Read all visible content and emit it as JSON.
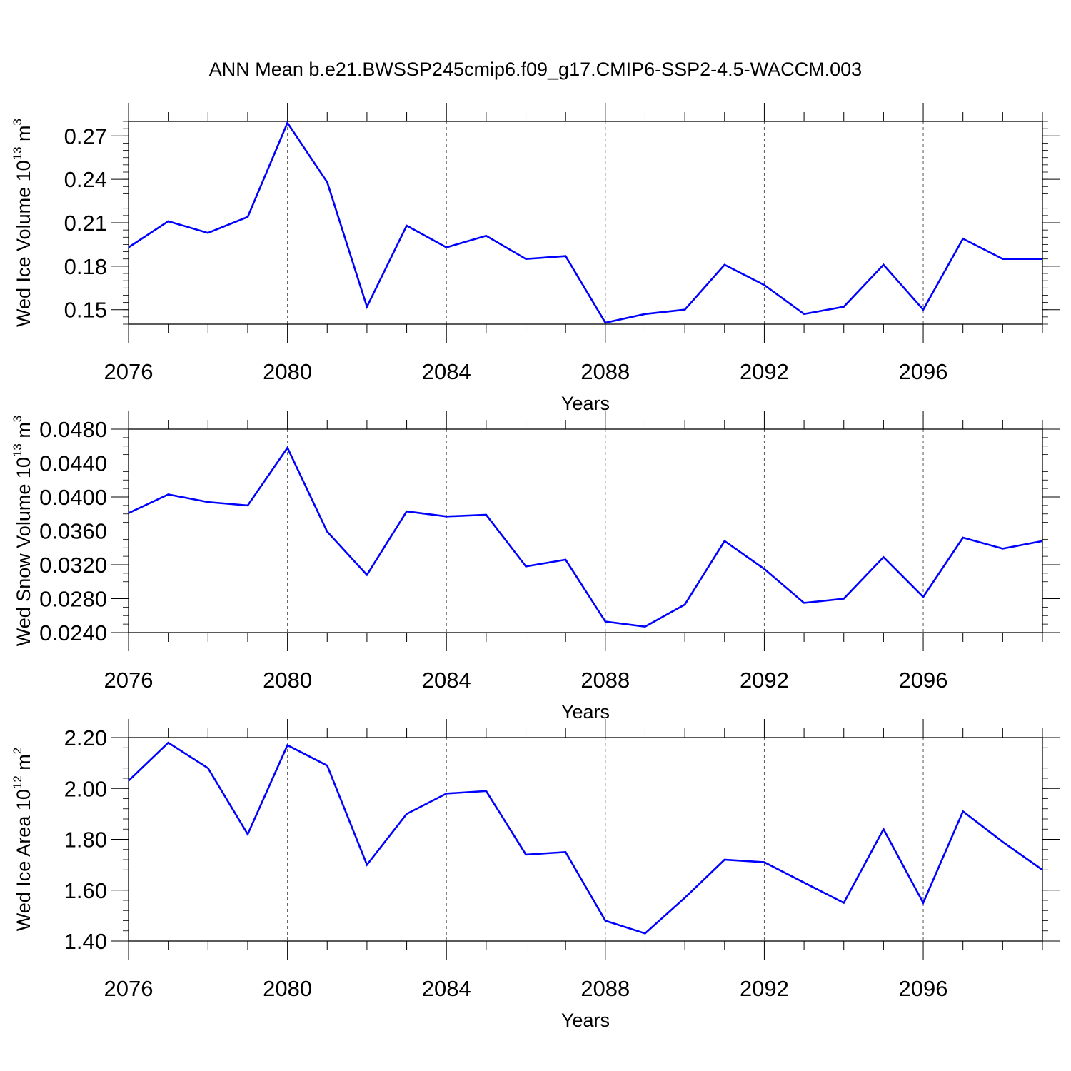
{
  "title": "ANN Mean b.e21.BWSSP245cmip6.f09_g17.CMIP6-SSP2-4.5-WACCM.003",
  "line_color": "#0000ff",
  "chart_data": [
    {
      "type": "line",
      "xlabel": "Years",
      "ylabel": "Wed Ice Volume 10",
      "ylabel_exp": "13",
      "ylabel_unit": " m",
      "ylabel_unit_exp": "3",
      "xlim": [
        2076,
        2099
      ],
      "ylim": [
        0.14,
        0.28
      ],
      "xticks": [
        "2076",
        "2080",
        "2084",
        "2088",
        "2092",
        "2096"
      ],
      "yticks": [
        "0.15",
        "0.18",
        "0.21",
        "0.24",
        "0.27"
      ],
      "x": [
        2076,
        2077,
        2078,
        2079,
        2080,
        2081,
        2082,
        2083,
        2084,
        2085,
        2086,
        2087,
        2088,
        2089,
        2090,
        2091,
        2092,
        2093,
        2094,
        2095,
        2096,
        2097,
        2098,
        2099
      ],
      "series": [
        {
          "values": [
            0.193,
            0.211,
            0.203,
            0.214,
            0.279,
            0.238,
            0.152,
            0.208,
            0.193,
            0.201,
            0.185,
            0.187,
            0.141,
            0.147,
            0.15,
            0.181,
            0.167,
            0.147,
            0.152,
            0.181,
            0.15,
            0.199,
            0.185,
            0.185
          ]
        }
      ],
      "grid": "vertical-dashed",
      "legend": "none"
    },
    {
      "type": "line",
      "xlabel": "Years",
      "ylabel": "Wed Snow Volume 10",
      "ylabel_exp": "13",
      "ylabel_unit": " m",
      "ylabel_unit_exp": "3",
      "xlim": [
        2076,
        2099
      ],
      "ylim": [
        0.024,
        0.048
      ],
      "xticks": [
        "2076",
        "2080",
        "2084",
        "2088",
        "2092",
        "2096"
      ],
      "yticks": [
        "0.0240",
        "0.0280",
        "0.0320",
        "0.0360",
        "0.0400",
        "0.0440",
        "0.0480"
      ],
      "x": [
        2076,
        2077,
        2078,
        2079,
        2080,
        2081,
        2082,
        2083,
        2084,
        2085,
        2086,
        2087,
        2088,
        2089,
        2090,
        2091,
        2092,
        2093,
        2094,
        2095,
        2096,
        2097,
        2098,
        2099
      ],
      "series": [
        {
          "values": [
            0.0381,
            0.0403,
            0.0394,
            0.039,
            0.0458,
            0.0359,
            0.0308,
            0.0383,
            0.0377,
            0.0379,
            0.0318,
            0.0326,
            0.0253,
            0.0247,
            0.0273,
            0.0348,
            0.0315,
            0.0275,
            0.028,
            0.0329,
            0.0282,
            0.0352,
            0.0339,
            0.0348
          ]
        }
      ],
      "grid": "vertical-dashed",
      "legend": "none"
    },
    {
      "type": "line",
      "xlabel": "Years",
      "ylabel": "Wed Ice Area 10",
      "ylabel_exp": "12",
      "ylabel_unit": " m",
      "ylabel_unit_exp": "2",
      "xlim": [
        2076,
        2099
      ],
      "ylim": [
        1.4,
        2.2
      ],
      "xticks": [
        "2076",
        "2080",
        "2084",
        "2088",
        "2092",
        "2096"
      ],
      "yticks": [
        "1.40",
        "1.60",
        "1.80",
        "2.00",
        "2.20"
      ],
      "x": [
        2076,
        2077,
        2078,
        2079,
        2080,
        2081,
        2082,
        2083,
        2084,
        2085,
        2086,
        2087,
        2088,
        2089,
        2090,
        2091,
        2092,
        2093,
        2094,
        2095,
        2096,
        2097,
        2098,
        2099
      ],
      "series": [
        {
          "values": [
            2.03,
            2.18,
            2.08,
            1.82,
            2.17,
            2.09,
            1.7,
            1.9,
            1.98,
            1.99,
            1.74,
            1.75,
            1.48,
            1.43,
            1.57,
            1.72,
            1.71,
            1.63,
            1.55,
            1.84,
            1.55,
            1.91,
            1.79,
            1.68
          ]
        }
      ],
      "grid": "vertical-dashed",
      "legend": "none"
    }
  ]
}
